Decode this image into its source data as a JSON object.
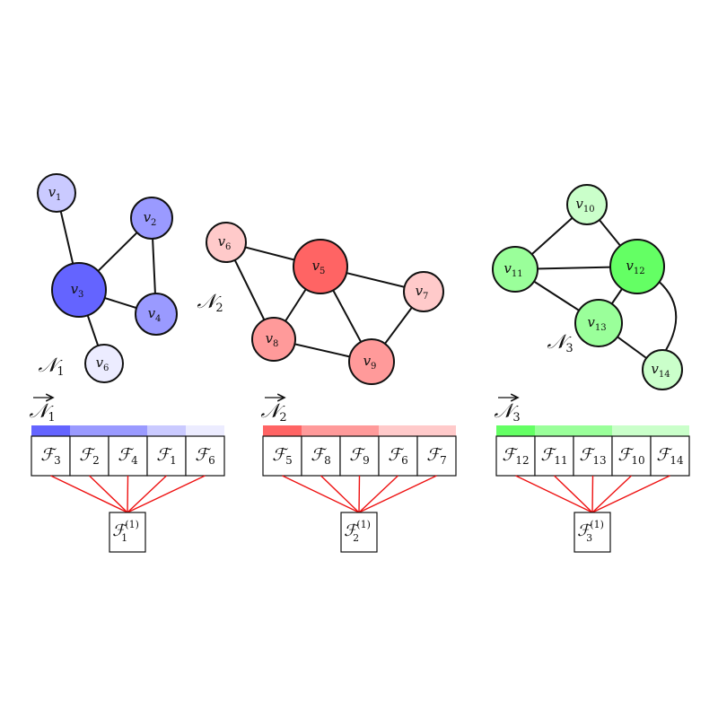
{
  "groups": [
    {
      "id": "n1",
      "name": {
        "base": "𝒩",
        "sub": "1"
      },
      "color": "#6464ff",
      "nodes": [
        {
          "id": "v1",
          "label": {
            "base": "v",
            "sub": "1"
          },
          "fill": "#cacaff"
        },
        {
          "id": "v2",
          "label": {
            "base": "v",
            "sub": "2"
          },
          "fill": "#9a9aff"
        },
        {
          "id": "v3",
          "label": {
            "base": "v",
            "sub": "3"
          },
          "fill": "#6464ff"
        },
        {
          "id": "v4",
          "label": {
            "base": "v",
            "sub": "4"
          },
          "fill": "#9a9aff"
        },
        {
          "id": "v6",
          "label": {
            "base": "v",
            "sub": "6"
          },
          "fill": "#ececff"
        }
      ],
      "edges": [
        [
          "v1",
          "v3"
        ],
        [
          "v3",
          "v2"
        ],
        [
          "v2",
          "v4"
        ],
        [
          "v3",
          "v4"
        ],
        [
          "v3",
          "v6"
        ]
      ],
      "arrow_label": {
        "base": "𝒩",
        "sub": "1"
      },
      "bar_colors": [
        "#6464ff",
        "#9a9aff",
        "#9a9aff",
        "#cacaff",
        "#ececff"
      ],
      "cells": [
        {
          "base": "ℱ",
          "sub": "3"
        },
        {
          "base": "ℱ",
          "sub": "2"
        },
        {
          "base": "ℱ",
          "sub": "4"
        },
        {
          "base": "ℱ",
          "sub": "1"
        },
        {
          "base": "ℱ",
          "sub": "6"
        }
      ],
      "output": {
        "base": "ℱ",
        "sub": "1",
        "sup": "(1)"
      }
    },
    {
      "id": "n2",
      "name": {
        "base": "𝒩",
        "sub": "2"
      },
      "color": "#ff6464",
      "nodes": [
        {
          "id": "v6",
          "label": {
            "base": "v",
            "sub": "6"
          },
          "fill": "#ffcaca"
        },
        {
          "id": "v5",
          "label": {
            "base": "v",
            "sub": "5"
          },
          "fill": "#ff6464"
        },
        {
          "id": "v7",
          "label": {
            "base": "v",
            "sub": "7"
          },
          "fill": "#ffcaca"
        },
        {
          "id": "v8",
          "label": {
            "base": "v",
            "sub": "8"
          },
          "fill": "#ff9a9a"
        },
        {
          "id": "v9",
          "label": {
            "base": "v",
            "sub": "9"
          },
          "fill": "#ff9a9a"
        }
      ],
      "edges": [
        [
          "v6",
          "v5"
        ],
        [
          "v6",
          "v8"
        ],
        [
          "v5",
          "v8"
        ],
        [
          "v5",
          "v9"
        ],
        [
          "v5",
          "v7"
        ],
        [
          "v8",
          "v9"
        ],
        [
          "v9",
          "v7"
        ]
      ],
      "arrow_label": {
        "base": "𝒩",
        "sub": "2"
      },
      "bar_colors": [
        "#ff6464",
        "#ff9a9a",
        "#ff9a9a",
        "#ffcaca",
        "#ffcaca"
      ],
      "cells": [
        {
          "base": "ℱ",
          "sub": "5"
        },
        {
          "base": "ℱ",
          "sub": "8"
        },
        {
          "base": "ℱ",
          "sub": "9"
        },
        {
          "base": "ℱ",
          "sub": "6"
        },
        {
          "base": "ℱ",
          "sub": "7"
        }
      ],
      "output": {
        "base": "ℱ",
        "sub": "2",
        "sup": "(1)"
      }
    },
    {
      "id": "n3",
      "name": {
        "base": "𝒩",
        "sub": "3"
      },
      "color": "#64ff64",
      "nodes": [
        {
          "id": "v10",
          "label": {
            "base": "v",
            "sub": "10"
          },
          "fill": "#caffca"
        },
        {
          "id": "v11",
          "label": {
            "base": "v",
            "sub": "11"
          },
          "fill": "#9aff9a"
        },
        {
          "id": "v12",
          "label": {
            "base": "v",
            "sub": "12"
          },
          "fill": "#64ff64"
        },
        {
          "id": "v13",
          "label": {
            "base": "v",
            "sub": "13"
          },
          "fill": "#9aff9a"
        },
        {
          "id": "v14",
          "label": {
            "base": "v",
            "sub": "14"
          },
          "fill": "#caffca"
        }
      ],
      "edges": [
        [
          "v11",
          "v10"
        ],
        [
          "v10",
          "v12"
        ],
        [
          "v11",
          "v12"
        ],
        [
          "v11",
          "v13"
        ],
        [
          "v13",
          "v12"
        ],
        [
          "v13",
          "v14"
        ]
      ],
      "curved_edges": [
        [
          "v12",
          "v14"
        ]
      ],
      "arrow_label": {
        "base": "𝒩",
        "sub": "3"
      },
      "bar_colors": [
        "#64ff64",
        "#9aff9a",
        "#9aff9a",
        "#caffca",
        "#caffca"
      ],
      "cells": [
        {
          "base": "ℱ",
          "sub": "12"
        },
        {
          "base": "ℱ",
          "sub": "11"
        },
        {
          "base": "ℱ",
          "sub": "13"
        },
        {
          "base": "ℱ",
          "sub": "10"
        },
        {
          "base": "ℱ",
          "sub": "14"
        }
      ],
      "output": {
        "base": "ℱ",
        "sub": "3",
        "sup": "(1)"
      }
    }
  ]
}
